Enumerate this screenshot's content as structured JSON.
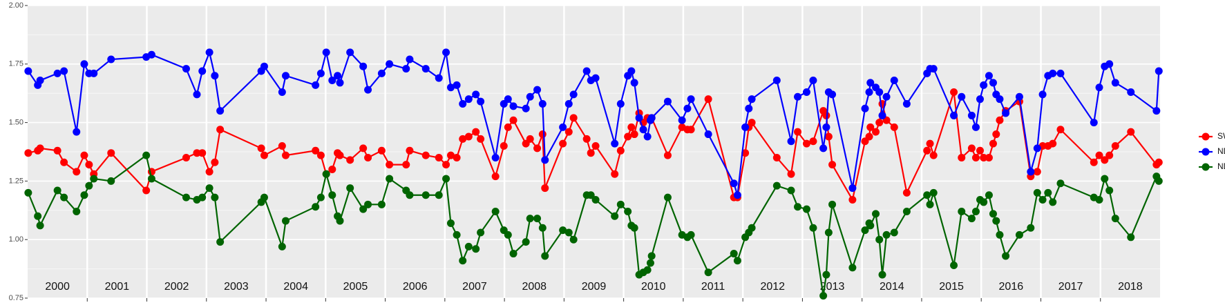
{
  "chart_data": {
    "type": "line",
    "x": [
      2000.01,
      2000.17,
      2000.21,
      2000.5,
      2000.61,
      2000.82,
      2000.95,
      2001.03,
      2001.11,
      2001.4,
      2001.99,
      2002.08,
      2002.66,
      2002.84,
      2002.93,
      2003.05,
      2003.14,
      2003.23,
      2003.92,
      2003.97,
      2004.27,
      2004.33,
      2004.83,
      2004.92,
      2005.01,
      2005.11,
      2005.2,
      2005.24,
      2005.41,
      2005.63,
      2005.71,
      2005.94,
      2006.07,
      2006.35,
      2006.41,
      2006.68,
      2006.9,
      2007.02,
      2007.1,
      2007.2,
      2007.3,
      2007.4,
      2007.52,
      2007.6,
      2007.85,
      2007.99,
      2008.06,
      2008.15,
      2008.36,
      2008.43,
      2008.55,
      2008.64,
      2008.68,
      2008.98,
      2009.08,
      2009.16,
      2009.38,
      2009.45,
      2009.53,
      2009.85,
      2009.95,
      2010.07,
      2010.13,
      2010.18,
      2010.26,
      2010.33,
      2010.4,
      2010.45,
      2010.47,
      2010.74,
      2010.98,
      2011.07,
      2011.13,
      2011.42,
      2011.85,
      2011.91,
      2012.04,
      2012.1,
      2012.15,
      2012.57,
      2012.81,
      2012.92,
      2013.07,
      2013.18,
      2013.35,
      2013.4,
      2013.44,
      2013.5,
      2013.84,
      2014.05,
      2014.12,
      2014.14,
      2014.23,
      2014.29,
      2014.34,
      2014.41,
      2014.54,
      2014.75,
      2015.09,
      2015.14,
      2015.2,
      2015.54,
      2015.67,
      2015.84,
      2015.91,
      2015.98,
      2016.04,
      2016.13,
      2016.2,
      2016.25,
      2016.31,
      2016.41,
      2016.64,
      2016.83,
      2016.94,
      2017.03,
      2017.12,
      2017.2,
      2017.33,
      2017.89,
      2017.98,
      2018.07,
      2018.15,
      2018.25,
      2018.51,
      2018.94,
      2018.98
    ],
    "series": [
      {
        "name": "SWIR",
        "color": "#ff0000",
        "values": [
          1.37,
          1.38,
          1.39,
          1.38,
          1.33,
          1.29,
          1.36,
          1.32,
          1.28,
          1.37,
          1.21,
          1.29,
          1.35,
          1.37,
          1.37,
          1.29,
          1.33,
          1.47,
          1.39,
          1.36,
          1.4,
          1.36,
          1.38,
          1.36,
          1.28,
          1.3,
          1.37,
          1.36,
          1.34,
          1.39,
          1.35,
          1.38,
          1.32,
          1.32,
          1.38,
          1.36,
          1.35,
          1.32,
          1.36,
          1.35,
          1.43,
          1.44,
          1.46,
          1.43,
          1.27,
          1.4,
          1.48,
          1.51,
          1.41,
          1.43,
          1.39,
          1.45,
          1.22,
          1.41,
          1.46,
          1.52,
          1.43,
          1.37,
          1.4,
          1.28,
          1.38,
          1.44,
          1.48,
          1.45,
          1.54,
          1.5,
          1.52,
          1.51,
          1.52,
          1.36,
          1.48,
          1.47,
          1.47,
          1.6,
          1.18,
          1.18,
          1.37,
          1.48,
          1.5,
          1.35,
          1.28,
          1.46,
          1.41,
          1.42,
          1.55,
          1.53,
          1.44,
          1.32,
          1.17,
          1.42,
          1.44,
          1.48,
          1.46,
          1.5,
          1.58,
          1.51,
          1.48,
          1.2,
          1.38,
          1.41,
          1.36,
          1.63,
          1.35,
          1.39,
          1.35,
          1.38,
          1.35,
          1.35,
          1.41,
          1.45,
          1.51,
          1.55,
          1.59,
          1.27,
          1.29,
          1.4,
          1.4,
          1.41,
          1.47,
          1.33,
          1.36,
          1.34,
          1.36,
          1.4,
          1.46,
          1.32,
          1.33
        ]
      },
      {
        "name": "NDVI",
        "color": "#0000ff",
        "values": [
          1.72,
          1.66,
          1.68,
          1.71,
          1.72,
          1.46,
          1.75,
          1.71,
          1.71,
          1.77,
          1.78,
          1.79,
          1.73,
          1.62,
          1.72,
          1.8,
          1.7,
          1.55,
          1.72,
          1.74,
          1.63,
          1.7,
          1.66,
          1.71,
          1.8,
          1.68,
          1.7,
          1.67,
          1.8,
          1.74,
          1.64,
          1.71,
          1.75,
          1.73,
          1.77,
          1.73,
          1.69,
          1.8,
          1.65,
          1.66,
          1.58,
          1.6,
          1.62,
          1.59,
          1.35,
          1.58,
          1.6,
          1.57,
          1.56,
          1.61,
          1.64,
          1.58,
          1.34,
          1.48,
          1.58,
          1.62,
          1.72,
          1.68,
          1.69,
          1.41,
          1.58,
          1.7,
          1.72,
          1.67,
          1.52,
          1.47,
          1.44,
          1.51,
          1.52,
          1.59,
          1.51,
          1.56,
          1.6,
          1.45,
          1.24,
          1.19,
          1.48,
          1.56,
          1.6,
          1.68,
          1.42,
          1.61,
          1.63,
          1.68,
          1.39,
          1.48,
          1.63,
          1.62,
          1.22,
          1.56,
          1.63,
          1.67,
          1.65,
          1.63,
          1.53,
          1.61,
          1.68,
          1.58,
          1.71,
          1.73,
          1.73,
          1.53,
          1.61,
          1.53,
          1.48,
          1.6,
          1.66,
          1.7,
          1.67,
          1.62,
          1.6,
          1.54,
          1.61,
          1.29,
          1.39,
          1.62,
          1.7,
          1.71,
          1.71,
          1.5,
          1.65,
          1.74,
          1.75,
          1.67,
          1.63,
          1.55,
          1.72
        ]
      },
      {
        "name": "NDWI",
        "color": "#006400",
        "values": [
          1.2,
          1.1,
          1.06,
          1.21,
          1.18,
          1.12,
          1.19,
          1.23,
          1.26,
          1.25,
          1.36,
          1.26,
          1.18,
          1.17,
          1.18,
          1.22,
          1.18,
          0.99,
          1.16,
          1.18,
          0.97,
          1.08,
          1.14,
          1.18,
          1.28,
          1.19,
          1.1,
          1.08,
          1.22,
          1.13,
          1.15,
          1.15,
          1.26,
          1.21,
          1.19,
          1.19,
          1.19,
          1.26,
          1.07,
          1.02,
          0.91,
          0.97,
          0.96,
          1.03,
          1.12,
          1.04,
          1.02,
          0.94,
          0.99,
          1.09,
          1.09,
          1.05,
          0.93,
          1.04,
          1.03,
          1.0,
          1.19,
          1.19,
          1.17,
          1.1,
          1.15,
          1.12,
          1.06,
          1.05,
          0.85,
          0.86,
          0.87,
          0.9,
          0.93,
          1.18,
          1.02,
          1.01,
          1.02,
          0.86,
          0.94,
          0.91,
          1.01,
          1.03,
          1.05,
          1.23,
          1.21,
          1.14,
          1.13,
          1.05,
          0.76,
          0.85,
          1.03,
          1.15,
          0.88,
          1.04,
          1.07,
          1.06,
          1.11,
          1.0,
          0.85,
          1.02,
          1.03,
          1.12,
          1.19,
          1.15,
          1.2,
          0.89,
          1.12,
          1.09,
          1.12,
          1.17,
          1.16,
          1.19,
          1.11,
          1.08,
          1.02,
          0.93,
          1.02,
          1.05,
          1.2,
          1.17,
          1.2,
          1.16,
          1.24,
          1.18,
          1.17,
          1.26,
          1.21,
          1.09,
          1.01,
          1.27,
          1.25
        ]
      }
    ],
    "xlim": [
      2000,
      2019
    ],
    "year_labels": [
      2000,
      2001,
      2002,
      2003,
      2004,
      2005,
      2006,
      2007,
      2008,
      2009,
      2010,
      2011,
      2012,
      2013,
      2014,
      2015,
      2016,
      2017,
      2018
    ],
    "ylim": [
      0.75,
      2.0
    ],
    "yticks": [
      {
        "value": 0.75,
        "label": "0.75"
      },
      {
        "value": 1.0,
        "label": "1.00"
      },
      {
        "value": 1.25,
        "label": "1.25"
      },
      {
        "value": 1.5,
        "label": "1.50"
      },
      {
        "value": 1.75,
        "label": "1.75"
      },
      {
        "value": 2.0,
        "label": "2.00"
      }
    ],
    "grid": true,
    "legend": "right"
  }
}
